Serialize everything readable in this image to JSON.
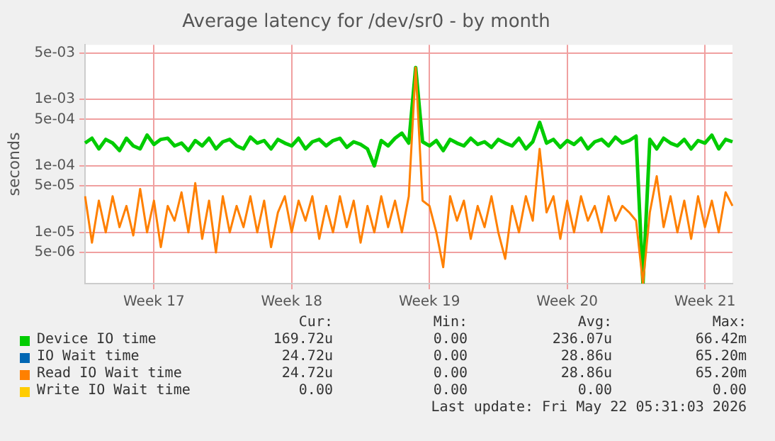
{
  "chart_data": {
    "type": "line",
    "title": "Average latency for /dev/sr0 - by month",
    "ylabel": "seconds",
    "log": "y",
    "grid": true,
    "legend": "bottom",
    "marker": "none",
    "line_style": "solid",
    "categories": [
      null,
      null,
      null,
      null,
      null,
      null,
      null,
      null,
      null,
      null,
      "Week 17",
      null,
      null,
      null,
      null,
      null,
      null,
      null,
      null,
      null,
      null,
      null,
      null,
      null,
      null,
      null,
      null,
      null,
      null,
      null,
      "Week 18",
      null,
      null,
      null,
      null,
      null,
      null,
      null,
      null,
      null,
      null,
      null,
      null,
      null,
      null,
      null,
      null,
      null,
      null,
      null,
      "Week 19",
      null,
      null,
      null,
      null,
      null,
      null,
      null,
      null,
      null,
      null,
      null,
      null,
      null,
      null,
      null,
      null,
      null,
      null,
      null,
      "Week 20",
      null,
      null,
      null,
      null,
      null,
      null,
      null,
      null,
      null,
      null,
      null,
      null,
      null,
      null,
      null,
      null,
      null,
      null,
      null,
      "Week 21",
      null,
      null,
      null,
      null
    ],
    "ylim": [
      1.7e-06,
      0.0066
    ],
    "yticks": [
      {
        "value": 5e-06,
        "label": "5e-06"
      },
      {
        "value": 1e-05,
        "label": "1e-05"
      },
      {
        "value": 5e-05,
        "label": "5e-05"
      },
      {
        "value": 0.0001,
        "label": "1e-04"
      },
      {
        "value": 0.0005,
        "label": "5e-04"
      },
      {
        "value": 0.001,
        "label": "1e-03"
      },
      {
        "value": 0.005,
        "label": "5e-03"
      }
    ],
    "series": [
      {
        "name": "Device IO time",
        "color": "#00cc00",
        "values": [
          0.00022,
          0.00026,
          0.00018,
          0.00025,
          0.00022,
          0.00017,
          0.00026,
          0.0002,
          0.00018,
          0.00029,
          0.00021,
          0.00025,
          0.00026,
          0.0002,
          0.00022,
          0.00017,
          0.00024,
          0.0002,
          0.00026,
          0.00018,
          0.00023,
          0.00025,
          0.0002,
          0.00018,
          0.00027,
          0.00022,
          0.00024,
          0.00018,
          0.00025,
          0.00022,
          0.0002,
          0.00026,
          0.00018,
          0.00023,
          0.00025,
          0.0002,
          0.00024,
          0.00026,
          0.00019,
          0.00023,
          0.00021,
          0.00018,
          0.0001,
          0.00024,
          0.0002,
          0.00026,
          0.00031,
          0.00022,
          0.003,
          0.00023,
          0.0002,
          0.00024,
          0.00017,
          0.00025,
          0.00022,
          0.0002,
          0.00026,
          0.00021,
          0.00023,
          0.00019,
          0.00025,
          0.00022,
          0.0002,
          0.00026,
          0.00018,
          0.00023,
          0.00045,
          0.00022,
          0.00025,
          0.00019,
          0.00024,
          0.00021,
          0.00026,
          0.00018,
          0.00023,
          0.00025,
          0.0002,
          0.00027,
          0.00022,
          0.00024,
          0.00028,
          1.7e-06,
          0.00025,
          0.00018,
          0.00026,
          0.00022,
          0.0002,
          0.00025,
          0.00018,
          0.00024,
          0.00022,
          0.00029,
          0.00018,
          0.00025,
          0.00023
        ]
      },
      {
        "name": "IO Wait time",
        "color": "#0066b3",
        "values": [
          null,
          null,
          null,
          null,
          null,
          null,
          null,
          null,
          null,
          null,
          null,
          null,
          null,
          null,
          null,
          null,
          null,
          null,
          null,
          null,
          null,
          null,
          null,
          null,
          null,
          null,
          null,
          null,
          null,
          null,
          null,
          null,
          null,
          null,
          null,
          null,
          null,
          null,
          null,
          null,
          null,
          null,
          null,
          null,
          null,
          null,
          null,
          null,
          null,
          null,
          null,
          null,
          null,
          null,
          null,
          null,
          null,
          null,
          null,
          null,
          null,
          null,
          null,
          null,
          null,
          null,
          null,
          null,
          null,
          null,
          null,
          null,
          null,
          null,
          null,
          null,
          null,
          null,
          null,
          null,
          null,
          null,
          null,
          null,
          null,
          null,
          null,
          null,
          null,
          null,
          null,
          null,
          null,
          null,
          null
        ]
      },
      {
        "name": "Read IO Wait time",
        "color": "#ff8000",
        "values": [
          3.5e-05,
          7e-06,
          3e-05,
          1e-05,
          3.5e-05,
          1.2e-05,
          2.5e-05,
          9e-06,
          4.5e-05,
          1e-05,
          3e-05,
          6e-06,
          2.5e-05,
          1.5e-05,
          4e-05,
          1e-05,
          5.5e-05,
          8e-06,
          3e-05,
          5e-06,
          3.5e-05,
          1e-05,
          2.5e-05,
          1.2e-05,
          3.5e-05,
          1e-05,
          3e-05,
          6e-06,
          2e-05,
          3.5e-05,
          1e-05,
          3e-05,
          1.5e-05,
          3.5e-05,
          8e-06,
          2.5e-05,
          1e-05,
          3.5e-05,
          1.2e-05,
          3e-05,
          7e-06,
          2.5e-05,
          1e-05,
          3.5e-05,
          1.2e-05,
          3e-05,
          1e-05,
          3.5e-05,
          0.003,
          3e-05,
          2.5e-05,
          1e-05,
          3e-06,
          3.5e-05,
          1.5e-05,
          3e-05,
          8e-06,
          2.5e-05,
          1.2e-05,
          3.5e-05,
          1e-05,
          4e-06,
          2.5e-05,
          1e-05,
          3.5e-05,
          1.5e-05,
          0.00018,
          2e-05,
          3.5e-05,
          8e-06,
          3e-05,
          1e-05,
          3.5e-05,
          1.5e-05,
          2.5e-05,
          1e-05,
          3.5e-05,
          1.5e-05,
          2.5e-05,
          2e-05,
          1.5e-05,
          1.7e-06,
          2e-05,
          7e-05,
          1.2e-05,
          3.5e-05,
          1e-05,
          3e-05,
          8e-06,
          3.5e-05,
          1.2e-05,
          3e-05,
          1e-05,
          4e-05,
          2.5e-05
        ]
      },
      {
        "name": "Write IO Wait time",
        "color": "#ffcc00",
        "values": [
          null,
          null,
          null,
          null,
          null,
          null,
          null,
          null,
          null,
          null,
          null,
          null,
          null,
          null,
          null,
          null,
          null,
          null,
          null,
          null,
          null,
          null,
          null,
          null,
          null,
          null,
          null,
          null,
          null,
          null,
          null,
          null,
          null,
          null,
          null,
          null,
          null,
          null,
          null,
          null,
          null,
          null,
          null,
          null,
          null,
          null,
          null,
          null,
          null,
          null,
          null,
          null,
          null,
          null,
          null,
          null,
          null,
          null,
          null,
          null,
          null,
          null,
          null,
          null,
          null,
          null,
          null,
          null,
          null,
          null,
          null,
          null,
          null,
          null,
          null,
          null,
          null,
          null,
          null,
          null,
          null,
          null,
          null,
          null,
          null,
          null,
          null,
          null,
          null,
          null,
          null,
          null,
          null,
          null,
          null
        ]
      }
    ],
    "annotations": [
      "Cur:",
      "Min:",
      "Avg:",
      "Max:",
      "169.72u",
      "0.00",
      "236.07u",
      "66.42m",
      "24.72u",
      "0.00",
      "28.86u",
      "65.20m",
      "24.72u",
      "0.00",
      "28.86u",
      "65.20m",
      "0.00",
      "0.00",
      "0.00",
      "0.00",
      "Last update: Fri May 22 05:31:03 2026"
    ]
  }
}
